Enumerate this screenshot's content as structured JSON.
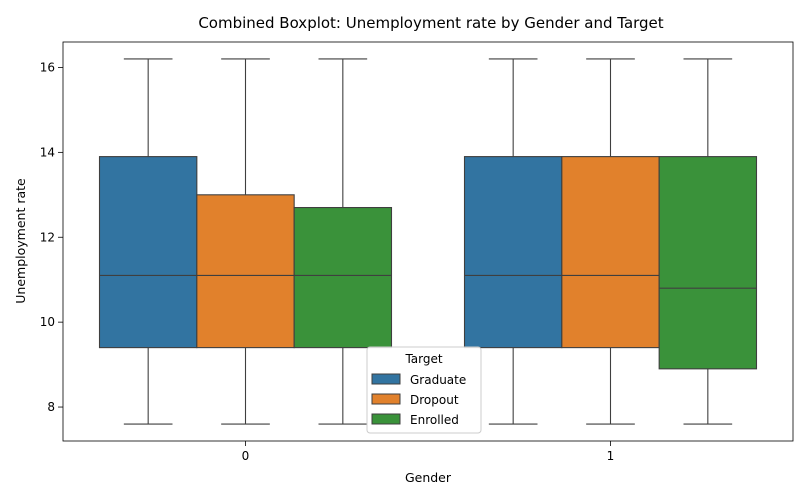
{
  "chart_data": {
    "type": "boxplot",
    "title": "Combined Boxplot: Unemployment rate by Gender and Target",
    "xlabel": "Gender",
    "ylabel": "Unemployment rate",
    "categories": [
      "0",
      "1"
    ],
    "ylim": [
      7.2,
      16.6
    ],
    "yticks": [
      "8",
      "10",
      "12",
      "14",
      "16"
    ],
    "grid": false,
    "legend": {
      "title": "Target",
      "placement": "lower-center"
    },
    "series": [
      {
        "name": "Graduate",
        "color": "#3274a1",
        "boxes": [
          {
            "min": 7.6,
            "q1": 9.4,
            "median": 11.1,
            "q3": 13.9,
            "max": 16.2
          },
          {
            "min": 7.6,
            "q1": 9.4,
            "median": 11.1,
            "q3": 13.9,
            "max": 16.2
          }
        ]
      },
      {
        "name": "Dropout",
        "color": "#e1812c",
        "boxes": [
          {
            "min": 7.6,
            "q1": 9.4,
            "median": 11.1,
            "q3": 13.0,
            "max": 16.2
          },
          {
            "min": 7.6,
            "q1": 9.4,
            "median": 11.1,
            "q3": 13.9,
            "max": 16.2
          }
        ]
      },
      {
        "name": "Enrolled",
        "color": "#3a923a",
        "boxes": [
          {
            "min": 7.6,
            "q1": 9.4,
            "median": 11.1,
            "q3": 12.7,
            "max": 16.2
          },
          {
            "min": 7.6,
            "q1": 8.9,
            "median": 10.8,
            "q3": 13.9,
            "max": 16.2
          }
        ]
      }
    ]
  }
}
